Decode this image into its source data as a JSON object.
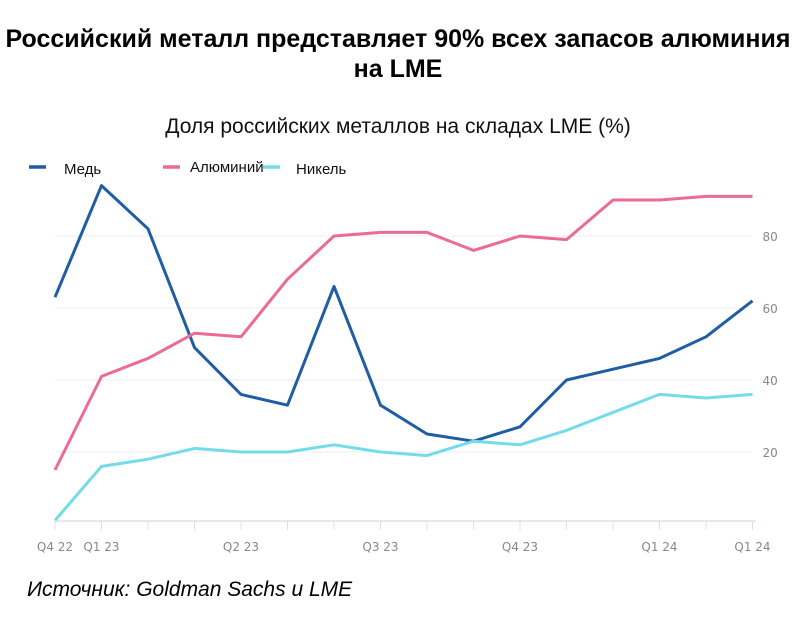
{
  "title": "Российский металл представляет 90% всех запасов алюминия на LME",
  "source": "Источник: Goldman Sachs и LME",
  "chart_data": {
    "type": "line",
    "title": "Доля российских металлов на складах LME (%)",
    "xlabel": "",
    "ylabel": "",
    "ylim": [
      0,
      100
    ],
    "yticks": [
      20,
      40,
      60,
      80
    ],
    "xtick_labels": [
      {
        "i": 0,
        "label": "Q4 22"
      },
      {
        "i": 1,
        "label": "Q1 23"
      },
      {
        "i": 4,
        "label": "Q2 23"
      },
      {
        "i": 7,
        "label": "Q3 23"
      },
      {
        "i": 10,
        "label": "Q4 23"
      },
      {
        "i": 13,
        "label": "Q1 24"
      },
      {
        "i": 15,
        "label": "Q1 24"
      }
    ],
    "legend": "top-left",
    "series": [
      {
        "name": "Медь",
        "color": "#1f5ea5",
        "values": [
          63,
          94,
          82,
          49,
          36,
          33,
          66,
          33,
          25,
          23,
          27,
          40,
          43,
          46,
          52,
          62
        ]
      },
      {
        "name": "Алюминий",
        "color": "#ec6b95",
        "values": [
          15,
          41,
          46,
          53,
          52,
          68,
          80,
          81,
          81,
          76,
          80,
          79,
          90,
          90,
          91,
          91
        ]
      },
      {
        "name": "Никель",
        "color": "#72dde8",
        "values": [
          1,
          16,
          18,
          21,
          20,
          20,
          22,
          20,
          19,
          23,
          22,
          26,
          31,
          36,
          35,
          36
        ]
      }
    ]
  }
}
